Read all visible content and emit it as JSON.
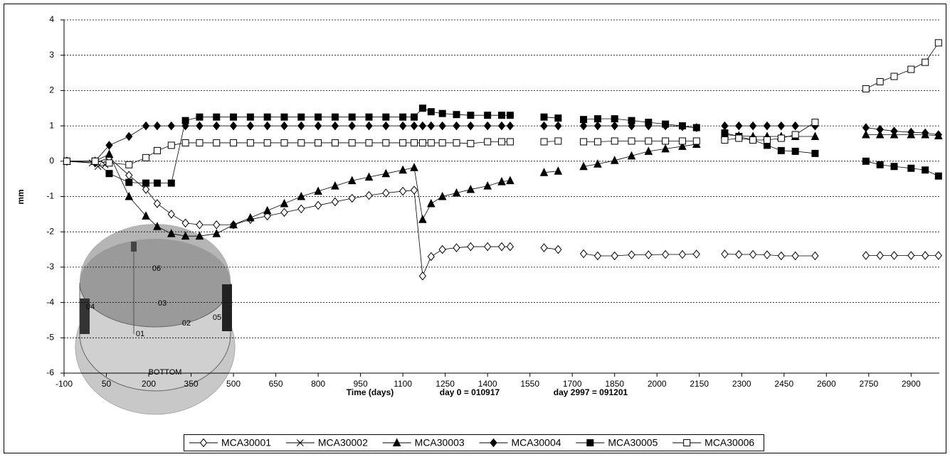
{
  "chart_data": {
    "type": "line",
    "xlabel": "Time (days)",
    "note1": "day 0 = 010917",
    "note2": "day 2997 = 091201",
    "ylabel": "mm",
    "xlim": [
      -100,
      3000
    ],
    "xticks": [
      -100,
      50,
      200,
      350,
      500,
      650,
      800,
      950,
      1100,
      1250,
      1400,
      1550,
      1700,
      1850,
      2000,
      2150,
      2300,
      2450,
      2600,
      2750,
      2900
    ],
    "ylim": [
      -6,
      4
    ],
    "yticks": [
      -6,
      -5,
      -4,
      -3,
      -2,
      -1,
      0,
      1,
      2,
      3,
      4
    ],
    "grid": true,
    "legend": "bottom",
    "inset": {
      "labels": [
        "06",
        "03",
        "04",
        "05",
        "02",
        "01",
        "BOTTOM"
      ]
    },
    "series": [
      {
        "name": "MCA30001",
        "color": "#000000",
        "marker": "diamond-open",
        "x": [
          -90,
          10,
          60,
          130,
          190,
          230,
          280,
          330,
          380,
          440,
          500,
          560,
          620,
          680,
          740,
          800,
          860,
          920,
          980,
          1040,
          1100,
          1140,
          1170,
          1200,
          1240,
          1290,
          1340,
          1400,
          1450,
          1480,
          null,
          1600,
          1650,
          null,
          1740,
          1790,
          1850,
          1910,
          1970,
          2030,
          2090,
          2140,
          null,
          2240,
          2290,
          2340,
          2390,
          2440,
          2490,
          2560,
          null,
          2740,
          2790,
          2840,
          2900,
          2950,
          2997
        ],
        "values": [
          0,
          -0.05,
          0.1,
          -0.4,
          -0.8,
          -1.2,
          -1.5,
          -1.75,
          -1.8,
          -1.8,
          -1.8,
          -1.65,
          -1.55,
          -1.45,
          -1.35,
          -1.25,
          -1.15,
          -1.05,
          -0.97,
          -0.9,
          -0.85,
          -0.82,
          -3.25,
          -2.7,
          -2.5,
          -2.45,
          -2.42,
          -2.42,
          -2.42,
          -2.42,
          null,
          -2.45,
          -2.5,
          null,
          -2.62,
          -2.68,
          -2.68,
          -2.65,
          -2.65,
          -2.64,
          -2.64,
          -2.63,
          null,
          -2.63,
          -2.64,
          -2.64,
          -2.65,
          -2.68,
          -2.68,
          -2.68,
          null,
          -2.67,
          -2.67,
          -2.67,
          -2.67,
          -2.67,
          -2.67
        ]
      },
      {
        "name": "MCA30002",
        "color": "#000000",
        "marker": "x",
        "x": [
          -90,
          0,
          20,
          45
        ],
        "values": [
          0,
          -0.05,
          -0.15,
          -0.1
        ]
      },
      {
        "name": "MCA30003",
        "color": "#000000",
        "marker": "triangle",
        "x": [
          -90,
          10,
          60,
          130,
          190,
          230,
          280,
          330,
          380,
          440,
          500,
          560,
          620,
          680,
          740,
          800,
          860,
          920,
          980,
          1040,
          1100,
          1140,
          1170,
          1200,
          1240,
          1290,
          1340,
          1400,
          1450,
          1480,
          null,
          1600,
          1650,
          null,
          1740,
          1790,
          1850,
          1910,
          1970,
          2030,
          2090,
          2140,
          null,
          2240,
          2290,
          2340,
          2390,
          2440,
          2490,
          2560,
          null,
          2740,
          2790,
          2840,
          2900,
          2950,
          2997
        ],
        "values": [
          0,
          0,
          0.2,
          -1.0,
          -1.55,
          -1.85,
          -2.05,
          -2.12,
          -2.12,
          -2.05,
          -1.8,
          -1.6,
          -1.4,
          -1.2,
          -1.0,
          -0.85,
          -0.7,
          -0.55,
          -0.45,
          -0.35,
          -0.25,
          -0.18,
          -1.65,
          -1.2,
          -1.0,
          -0.9,
          -0.8,
          -0.7,
          -0.58,
          -0.55,
          null,
          -0.32,
          -0.28,
          null,
          -0.15,
          -0.08,
          0.02,
          0.15,
          0.28,
          0.35,
          0.42,
          0.48,
          null,
          0.75,
          0.72,
          0.7,
          0.7,
          0.7,
          0.7,
          0.7,
          null,
          0.75,
          0.75,
          0.75,
          0.75,
          0.75,
          0.72
        ]
      },
      {
        "name": "MCA30004",
        "color": "#000000",
        "marker": "diamond",
        "x": [
          -90,
          10,
          60,
          130,
          190,
          230,
          280,
          330,
          380,
          440,
          500,
          560,
          620,
          680,
          740,
          800,
          860,
          920,
          980,
          1040,
          1100,
          1140,
          1170,
          1200,
          1240,
          1290,
          1340,
          1400,
          1450,
          1480,
          null,
          1600,
          1650,
          null,
          1740,
          1790,
          1850,
          1910,
          1970,
          2030,
          2090,
          2140,
          null,
          2240,
          2290,
          2340,
          2390,
          2440,
          2490,
          2560,
          null,
          2740,
          2790,
          2840,
          2900,
          2950,
          2997
        ],
        "values": [
          0,
          0,
          0.45,
          0.7,
          1.0,
          1.0,
          1.0,
          1.0,
          1.0,
          1.0,
          1.0,
          1.0,
          1.0,
          1.0,
          1.0,
          1.0,
          1.0,
          1.0,
          1.0,
          1.0,
          1.0,
          1.0,
          1.0,
          1.0,
          1.0,
          1.0,
          1.0,
          1.0,
          1.0,
          1.0,
          null,
          1.0,
          1.0,
          null,
          1.0,
          1.0,
          1.0,
          1.0,
          1.0,
          1.0,
          0.98,
          0.95,
          null,
          1.0,
          1.0,
          1.0,
          1.0,
          1.0,
          1.0,
          1.0,
          null,
          0.95,
          0.9,
          0.85,
          0.82,
          0.8,
          0.75
        ]
      },
      {
        "name": "MCA30005",
        "color": "#000000",
        "marker": "square",
        "x": [
          -90,
          10,
          60,
          130,
          190,
          230,
          280,
          330,
          380,
          440,
          500,
          560,
          620,
          680,
          740,
          800,
          860,
          920,
          980,
          1040,
          1100,
          1140,
          1170,
          1200,
          1240,
          1290,
          1340,
          1400,
          1450,
          1480,
          null,
          1600,
          1650,
          null,
          1740,
          1790,
          1850,
          1910,
          1970,
          2030,
          2090,
          2140,
          null,
          2240,
          2290,
          2340,
          2390,
          2440,
          2490,
          2560,
          null,
          2740,
          2790,
          2840,
          2900,
          2950,
          2997
        ],
        "values": [
          0,
          0,
          -0.35,
          -0.6,
          -0.62,
          -0.62,
          -0.62,
          1.15,
          1.25,
          1.25,
          1.25,
          1.25,
          1.25,
          1.25,
          1.25,
          1.25,
          1.25,
          1.25,
          1.25,
          1.25,
          1.25,
          1.25,
          1.5,
          1.4,
          1.35,
          1.32,
          1.3,
          1.3,
          1.3,
          1.3,
          null,
          1.25,
          1.22,
          null,
          1.18,
          1.2,
          1.2,
          1.15,
          1.1,
          1.05,
          1.0,
          0.95,
          null,
          0.8,
          0.7,
          0.6,
          0.45,
          0.3,
          0.28,
          0.22,
          null,
          0,
          -0.1,
          -0.15,
          -0.2,
          -0.25,
          -0.42
        ]
      },
      {
        "name": "MCA30006",
        "color": "#000000",
        "marker": "square-open",
        "x": [
          -90,
          10,
          60,
          130,
          190,
          230,
          280,
          330,
          380,
          440,
          500,
          560,
          620,
          680,
          740,
          800,
          860,
          920,
          980,
          1040,
          1100,
          1140,
          1170,
          1200,
          1240,
          1290,
          1340,
          1400,
          1450,
          1480,
          null,
          1600,
          1650,
          null,
          1740,
          1790,
          1850,
          1910,
          1970,
          2030,
          2090,
          2140,
          null,
          2240,
          2290,
          2340,
          2390,
          2440,
          2490,
          2560,
          null,
          2740,
          2790,
          2840,
          2900,
          2950,
          2997
        ],
        "values": [
          0,
          0,
          -0.05,
          -0.1,
          0.1,
          0.3,
          0.45,
          0.52,
          0.52,
          0.52,
          0.52,
          0.52,
          0.52,
          0.52,
          0.52,
          0.52,
          0.52,
          0.52,
          0.52,
          0.52,
          0.52,
          0.52,
          0.52,
          0.52,
          0.52,
          0.52,
          0.5,
          0.55,
          0.55,
          0.55,
          null,
          0.55,
          0.57,
          null,
          0.55,
          0.55,
          0.57,
          0.57,
          0.57,
          0.57,
          0.57,
          0.57,
          null,
          0.6,
          0.65,
          0.6,
          0.6,
          0.65,
          0.75,
          1.1,
          null,
          2.05,
          2.25,
          2.4,
          2.6,
          2.8,
          3.35
        ]
      }
    ]
  }
}
